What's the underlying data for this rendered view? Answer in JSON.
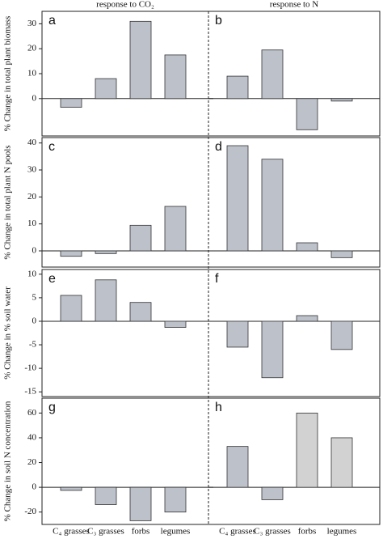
{
  "chart_data": [
    {
      "type": "bar",
      "panel": "a",
      "title": "response to CO₂",
      "ylabel": "% Change in total plant biomass",
      "categories": [
        null,
        null,
        null,
        null
      ],
      "values": [
        -3.5,
        8,
        31,
        17.5
      ],
      "colors": [
        "#bcc1ca",
        "#bcc1ca",
        "#bcc1ca",
        "#bcc1ca"
      ],
      "ylim": [
        -15,
        35
      ],
      "yticks": [
        0,
        10,
        20,
        30
      ]
    },
    {
      "type": "bar",
      "panel": "b",
      "title": "response to N",
      "categories": [
        null,
        null,
        null,
        null
      ],
      "values": [
        9,
        19.5,
        -12.5,
        -1
      ],
      "colors": [
        "#bcc1ca",
        "#bcc1ca",
        "#bcc1ca",
        "#bcc1ca"
      ],
      "ylim": [
        -15,
        35
      ]
    },
    {
      "type": "bar",
      "panel": "c",
      "ylabel": "% Change in total plant N pools",
      "categories": [
        null,
        null,
        null,
        null
      ],
      "values": [
        -2,
        -1,
        9.5,
        16.5
      ],
      "colors": [
        "#bcc1ca",
        "#bcc1ca",
        "#bcc1ca",
        "#bcc1ca"
      ],
      "ylim": [
        -6,
        42
      ],
      "yticks": [
        0,
        10,
        20,
        30,
        40
      ]
    },
    {
      "type": "bar",
      "panel": "d",
      "categories": [
        null,
        null,
        null,
        null
      ],
      "values": [
        39,
        34,
        3,
        -2.5
      ],
      "colors": [
        "#bcc1ca",
        "#bcc1ca",
        "#bcc1ca",
        "#bcc1ca"
      ],
      "ylim": [
        -6,
        42
      ]
    },
    {
      "type": "bar",
      "panel": "e",
      "ylabel": "% Change in % soil water",
      "categories": [
        null,
        null,
        null,
        null
      ],
      "values": [
        5.5,
        8.8,
        4,
        -1.3
      ],
      "colors": [
        "#bcc1ca",
        "#bcc1ca",
        "#bcc1ca",
        "#bcc1ca"
      ],
      "ylim": [
        -16,
        11
      ],
      "yticks": [
        -15,
        -10,
        -5,
        0,
        5,
        10
      ]
    },
    {
      "type": "bar",
      "panel": "f",
      "categories": [
        null,
        null,
        null,
        null
      ],
      "values": [
        -5.5,
        -12,
        1.2,
        -6
      ],
      "colors": [
        "#bcc1ca",
        "#bcc1ca",
        "#bcc1ca",
        "#bcc1ca"
      ],
      "ylim": [
        -16,
        11
      ]
    },
    {
      "type": "bar",
      "panel": "g",
      "ylabel": "% Change in soil N concentration",
      "categories": [
        "C₄ grasses",
        "C₃ grasses",
        "forbs",
        "legumes"
      ],
      "values": [
        -2.5,
        -14,
        -27,
        -20
      ],
      "colors": [
        "#bcc1ca",
        "#bcc1ca",
        "#bcc1ca",
        "#bcc1ca"
      ],
      "ylim": [
        -30,
        72
      ],
      "yticks": [
        -20,
        0,
        20,
        40,
        60
      ]
    },
    {
      "type": "bar",
      "panel": "h",
      "categories": [
        "C₄ grasses",
        "C₃ grasses",
        "forbs",
        "legumes"
      ],
      "values": [
        33,
        -10,
        60,
        40
      ],
      "colors": [
        "#bcc1ca",
        "#bcc1ca",
        "#d2d2d2",
        "#d2d2d2"
      ],
      "ylim": [
        -30,
        72
      ]
    }
  ]
}
